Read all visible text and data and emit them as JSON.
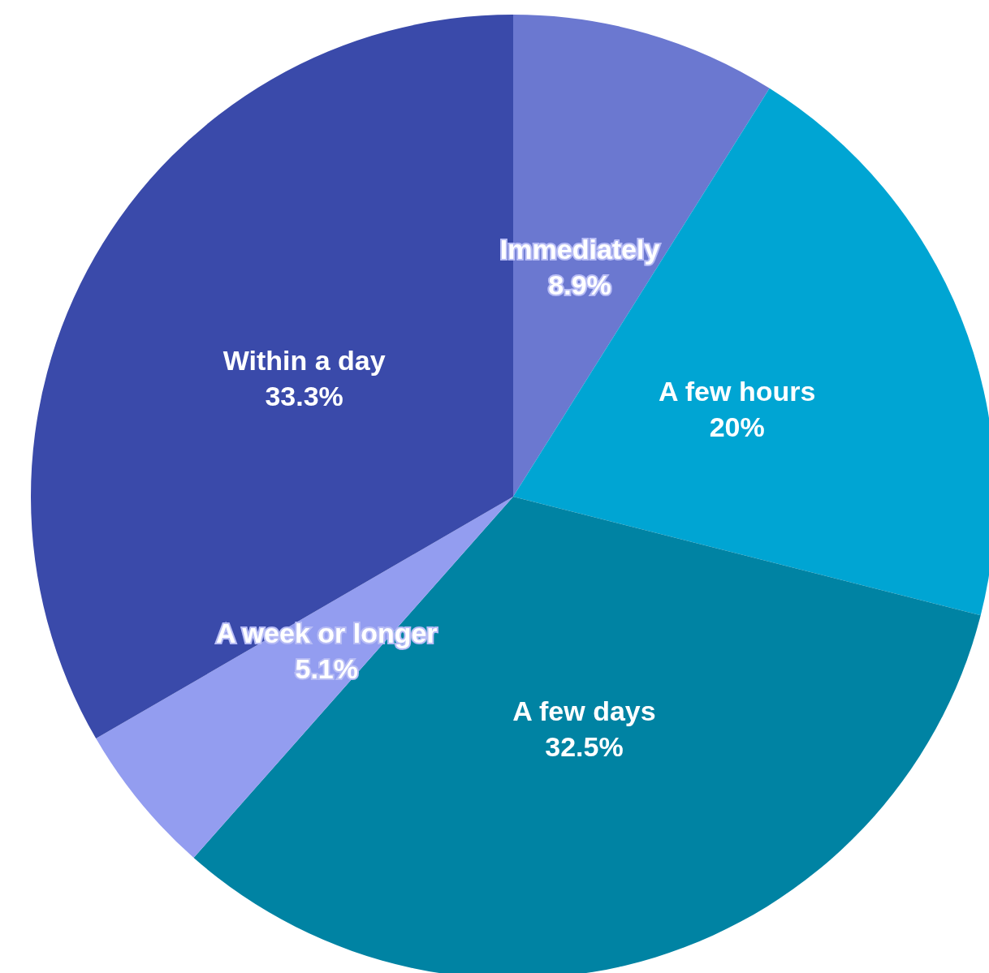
{
  "chart_data": {
    "type": "pie",
    "categories": [
      "Immediately",
      "A few hours",
      "A few days",
      "A week or longer",
      "Within a day"
    ],
    "values": [
      8.9,
      20,
      32.5,
      5.1,
      33.3
    ],
    "value_labels": [
      "8.9%",
      "20%",
      "32.5%",
      "5.1%",
      "33.3%"
    ],
    "colors": [
      "#6b78d0",
      "#00a5d3",
      "#0083a3",
      "#939df0",
      "#3a4aaa"
    ],
    "legend": false
  }
}
